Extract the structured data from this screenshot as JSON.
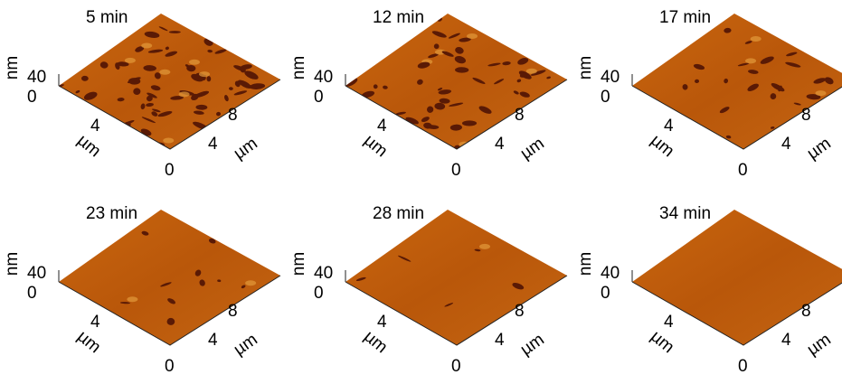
{
  "panels": [
    {
      "title": "5 min",
      "z_unit": "nm",
      "z_tick": "40",
      "z_zero": "0",
      "x_tick": "4",
      "x_unit": "µm",
      "origin": "0",
      "y_ticks": [
        "4",
        "8"
      ],
      "y_unit": "µm"
    },
    {
      "title": "12 min",
      "z_unit": "nm",
      "z_tick": "40",
      "z_zero": "0",
      "x_tick": "4",
      "x_unit": "µm",
      "origin": "0",
      "y_ticks": [
        "4",
        "8"
      ],
      "y_unit": "µm"
    },
    {
      "title": "17 min",
      "z_unit": "nm",
      "z_tick": "40",
      "z_zero": "0",
      "x_tick": "4",
      "x_unit": "µm",
      "origin": "0",
      "y_ticks": [
        "4",
        "8"
      ],
      "y_unit": "µm"
    },
    {
      "title": "23 min",
      "z_unit": "nm",
      "z_tick": "40",
      "z_zero": "0",
      "x_tick": "4",
      "x_unit": "µm",
      "origin": "0",
      "y_ticks": [
        "4",
        "8"
      ],
      "y_unit": "µm"
    },
    {
      "title": "28 min",
      "z_unit": "nm",
      "z_tick": "40",
      "z_zero": "0",
      "x_tick": "4",
      "x_unit": "µm",
      "origin": "0",
      "y_ticks": [
        "4",
        "8"
      ],
      "y_unit": "µm"
    },
    {
      "title": "34 min",
      "z_unit": "nm",
      "z_tick": "40",
      "z_zero": "0",
      "x_tick": "4",
      "x_unit": "µm",
      "origin": "0",
      "y_ticks": [
        "4",
        "8"
      ],
      "y_unit": "µm"
    }
  ]
}
